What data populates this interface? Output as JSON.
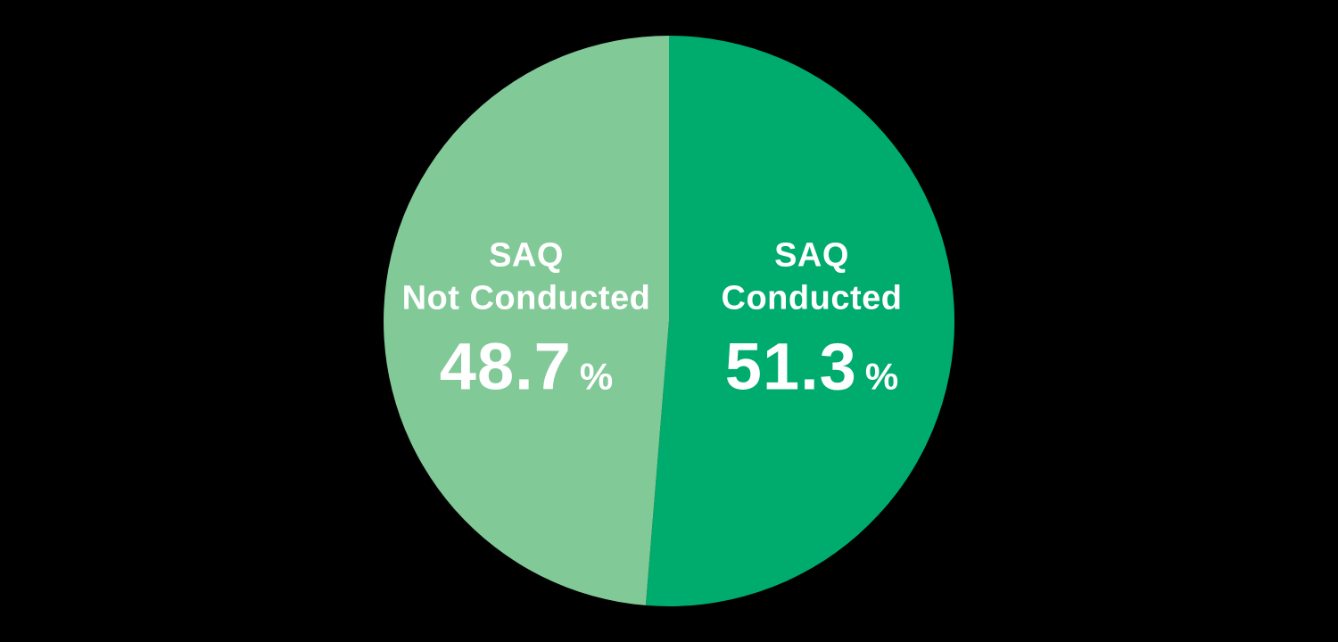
{
  "chart_data": {
    "type": "pie",
    "title": "",
    "start_angle_deg_from_top": 0,
    "direction": "clockwise",
    "background_color": "#000000",
    "label_text_color": "#ffffff",
    "slices": [
      {
        "id": "conducted",
        "label_line1": "SAQ",
        "label_line2": "Conducted",
        "value": 51.3,
        "display_value": "51.3",
        "unit": "%",
        "color": "#00ab6e",
        "label_side": "right"
      },
      {
        "id": "not-conducted",
        "label_line1": "SAQ",
        "label_line2": "Not Conducted",
        "value": 48.7,
        "display_value": "48.7",
        "unit": "%",
        "color": "#82c998",
        "label_side": "left"
      }
    ]
  }
}
